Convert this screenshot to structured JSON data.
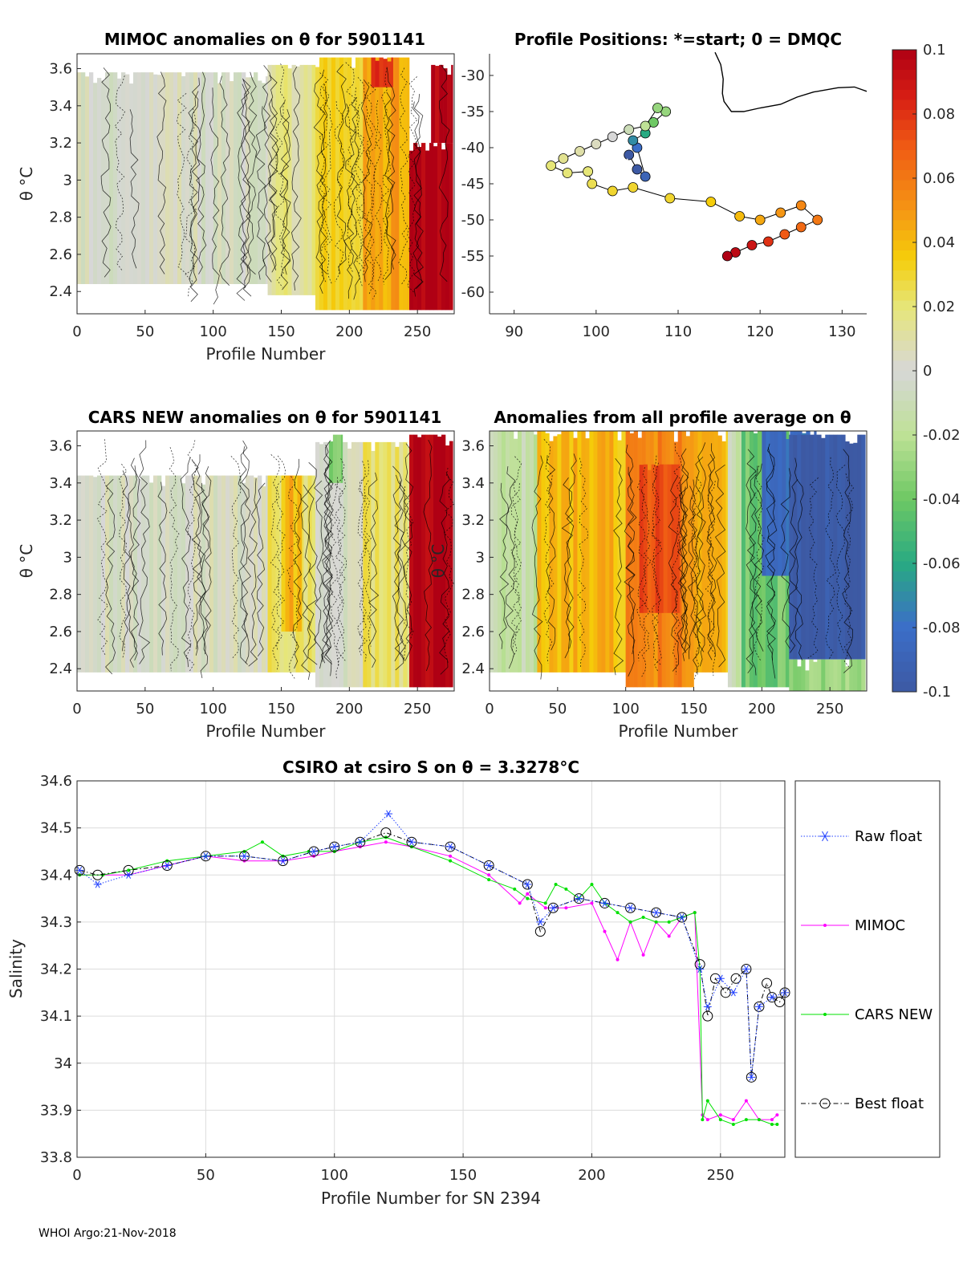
{
  "footer": "WHOI Argo:21-Nov-2018",
  "chart_data": [
    {
      "id": "mimoc",
      "type": "heatmap",
      "title": "MIMOC anomalies on θ  for 5901141",
      "xlabel": "Profile Number",
      "ylabel": "θ °C",
      "xlim": [
        0,
        277
      ],
      "ylim": [
        2.28,
        3.68
      ],
      "xticks": [
        "0",
        "50",
        "100",
        "150",
        "200",
        "250"
      ],
      "yticks": [
        "2.4",
        "2.6",
        "2.8",
        "3",
        "3.2",
        "3.4",
        "3.6"
      ],
      "xtick_values": [
        0,
        50,
        100,
        150,
        200,
        250
      ],
      "ytick_values": [
        2.4,
        2.6,
        2.8,
        3,
        3.2,
        3.4,
        3.6
      ],
      "blocks": [
        {
          "x0": 0,
          "x1": 140,
          "y0": 2.44,
          "y1": 3.58,
          "v": 0.0
        },
        {
          "x0": 140,
          "x1": 175,
          "y0": 2.38,
          "y1": 3.62,
          "v": 0.015
        },
        {
          "x0": 175,
          "x1": 210,
          "y0": 2.3,
          "y1": 3.66,
          "v": 0.03
        },
        {
          "x0": 210,
          "x1": 244,
          "y0": 2.3,
          "y1": 3.66,
          "v": 0.045
        },
        {
          "x0": 216,
          "x1": 232,
          "y0": 3.5,
          "y1": 3.66,
          "v": 0.08
        },
        {
          "x0": 244,
          "x1": 276,
          "y0": 2.3,
          "y1": 3.2,
          "v": 0.1
        },
        {
          "x0": 260,
          "x1": 276,
          "y0": 3.2,
          "y1": 3.62,
          "v": 0.1
        }
      ]
    },
    {
      "id": "positions",
      "type": "scatter",
      "title": "Profile Positions: *=start; 0 = DMQC",
      "xlim": [
        87,
        133
      ],
      "ylim": [
        -63,
        -27
      ],
      "xticks": [
        "90",
        "100",
        "110",
        "120",
        "130"
      ],
      "yticks": [
        "-30",
        "-35",
        "-40",
        "-45",
        "-50",
        "-55",
        "-60"
      ],
      "xtick_values": [
        90,
        100,
        110,
        120,
        130
      ],
      "ytick_values": [
        -30,
        -35,
        -40,
        -45,
        -50,
        -55,
        -60
      ],
      "start": {
        "lon": 103.8,
        "lat": -42.3
      },
      "coast": [
        [
          114.5,
          -26.8
        ],
        [
          115.2,
          -28.5
        ],
        [
          115.5,
          -30.5
        ],
        [
          115.4,
          -32.5
        ],
        [
          115.6,
          -33.6
        ],
        [
          116.5,
          -35.0
        ],
        [
          118.0,
          -35.0
        ],
        [
          120.0,
          -34.5
        ],
        [
          122.5,
          -34.0
        ],
        [
          124.5,
          -33.0
        ],
        [
          126.5,
          -32.3
        ],
        [
          129.5,
          -31.7
        ],
        [
          131.5,
          -31.6
        ],
        [
          132.5,
          -32.0
        ],
        [
          133,
          -32.2
        ]
      ],
      "track": [
        {
          "lon": 104.0,
          "lat": -41.0,
          "c": -0.1
        },
        {
          "lon": 105.0,
          "lat": -43.0,
          "c": -0.1
        },
        {
          "lon": 106.0,
          "lat": -44.0,
          "c": -0.09
        },
        {
          "lon": 105.0,
          "lat": -40.0,
          "c": -0.08
        },
        {
          "lon": 104.5,
          "lat": -39.0,
          "c": -0.07
        },
        {
          "lon": 106.0,
          "lat": -38.0,
          "c": -0.06
        },
        {
          "lon": 107.0,
          "lat": -36.5,
          "c": -0.04
        },
        {
          "lon": 108.5,
          "lat": -35.0,
          "c": -0.03
        },
        {
          "lon": 107.5,
          "lat": -34.5,
          "c": -0.03
        },
        {
          "lon": 106.0,
          "lat": -37.0,
          "c": -0.02
        },
        {
          "lon": 104.0,
          "lat": -37.5,
          "c": -0.01
        },
        {
          "lon": 102.0,
          "lat": -38.5,
          "c": 0.0
        },
        {
          "lon": 100.0,
          "lat": -39.5,
          "c": 0.005
        },
        {
          "lon": 98.0,
          "lat": -40.5,
          "c": 0.01
        },
        {
          "lon": 96.0,
          "lat": -41.5,
          "c": 0.015
        },
        {
          "lon": 94.5,
          "lat": -42.5,
          "c": 0.02
        },
        {
          "lon": 96.5,
          "lat": -43.5,
          "c": 0.02
        },
        {
          "lon": 99.0,
          "lat": -43.3,
          "c": 0.02
        },
        {
          "lon": 99.5,
          "lat": -45.0,
          "c": 0.025
        },
        {
          "lon": 102.0,
          "lat": -46.0,
          "c": 0.03
        },
        {
          "lon": 104.5,
          "lat": -45.5,
          "c": 0.03
        },
        {
          "lon": 109.0,
          "lat": -47.0,
          "c": 0.03
        },
        {
          "lon": 114.0,
          "lat": -47.5,
          "c": 0.035
        },
        {
          "lon": 117.5,
          "lat": -49.5,
          "c": 0.04
        },
        {
          "lon": 120.0,
          "lat": -50.0,
          "c": 0.045
        },
        {
          "lon": 122.5,
          "lat": -49.0,
          "c": 0.05
        },
        {
          "lon": 125.0,
          "lat": -48.0,
          "c": 0.055
        },
        {
          "lon": 127.0,
          "lat": -50.0,
          "c": 0.06
        },
        {
          "lon": 125.0,
          "lat": -51.0,
          "c": 0.065
        },
        {
          "lon": 123.0,
          "lat": -52.0,
          "c": 0.07
        },
        {
          "lon": 121.0,
          "lat": -53.0,
          "c": 0.08
        },
        {
          "lon": 119.0,
          "lat": -53.5,
          "c": 0.09
        },
        {
          "lon": 117.0,
          "lat": -54.5,
          "c": 0.095
        },
        {
          "lon": 116.0,
          "lat": -55.0,
          "c": 0.1
        }
      ]
    },
    {
      "id": "colorbar",
      "type": "colorbar",
      "ticks": [
        "0.1",
        "0.08",
        "0.06",
        "0.04",
        "0.02",
        "0",
        "-0.02",
        "-0.04",
        "-0.06",
        "-0.08",
        "-0.1"
      ],
      "tick_values": [
        0.1,
        0.08,
        0.06,
        0.04,
        0.02,
        0,
        -0.02,
        -0.04,
        -0.06,
        -0.08,
        -0.1
      ],
      "clim": [
        -0.1,
        0.1
      ]
    },
    {
      "id": "cars",
      "type": "heatmap",
      "title": "CARS NEW anomalies on θ for 5901141",
      "xlabel": "Profile Number",
      "ylabel": "θ °C",
      "xlim": [
        0,
        277
      ],
      "ylim": [
        2.28,
        3.68
      ],
      "xticks": [
        "0",
        "50",
        "100",
        "150",
        "200",
        "250"
      ],
      "yticks": [
        "2.4",
        "2.6",
        "2.8",
        "3",
        "3.2",
        "3.4",
        "3.6"
      ],
      "xtick_values": [
        0,
        50,
        100,
        150,
        200,
        250
      ],
      "ytick_values": [
        2.4,
        2.6,
        2.8,
        3,
        3.2,
        3.4,
        3.6
      ],
      "blocks": [
        {
          "x0": 0,
          "x1": 140,
          "y0": 2.38,
          "y1": 3.44,
          "v": 0.0
        },
        {
          "x0": 140,
          "x1": 175,
          "y0": 2.38,
          "y1": 3.44,
          "v": 0.02
        },
        {
          "x0": 150,
          "x1": 165,
          "y0": 2.6,
          "y1": 3.44,
          "v": 0.04
        },
        {
          "x0": 175,
          "x1": 210,
          "y0": 2.3,
          "y1": 3.62,
          "v": 0.0
        },
        {
          "x0": 185,
          "x1": 195,
          "y0": 3.4,
          "y1": 3.66,
          "v": -0.04
        },
        {
          "x0": 210,
          "x1": 244,
          "y0": 2.3,
          "y1": 3.62,
          "v": 0.02
        },
        {
          "x0": 244,
          "x1": 276,
          "y0": 2.3,
          "y1": 3.66,
          "v": 0.1
        }
      ]
    },
    {
      "id": "allavg",
      "type": "heatmap",
      "title": "Anomalies from all profile average on θ",
      "xlabel": "Profile Number",
      "ylabel": "θ °C",
      "xlim": [
        0,
        277
      ],
      "ylim": [
        2.28,
        3.68
      ],
      "xticks": [
        "0",
        "50",
        "100",
        "150",
        "200",
        "250"
      ],
      "yticks": [
        "2.4",
        "2.6",
        "2.8",
        "3",
        "3.2",
        "3.4",
        "3.6"
      ],
      "xtick_values": [
        0,
        50,
        100,
        150,
        200,
        250
      ],
      "ytick_values": [
        2.4,
        2.6,
        2.8,
        3,
        3.2,
        3.4,
        3.6
      ],
      "blocks": [
        {
          "x0": 0,
          "x1": 35,
          "y0": 2.38,
          "y1": 3.68,
          "v": -0.015
        },
        {
          "x0": 35,
          "x1": 100,
          "y0": 2.38,
          "y1": 3.68,
          "v": 0.04
        },
        {
          "x0": 100,
          "x1": 150,
          "y0": 2.3,
          "y1": 3.68,
          "v": 0.055
        },
        {
          "x0": 110,
          "x1": 140,
          "y0": 2.7,
          "y1": 3.5,
          "v": 0.075
        },
        {
          "x0": 150,
          "x1": 175,
          "y0": 2.38,
          "y1": 3.68,
          "v": 0.04
        },
        {
          "x0": 175,
          "x1": 185,
          "y0": 2.3,
          "y1": 3.68,
          "v": -0.01
        },
        {
          "x0": 185,
          "x1": 220,
          "y0": 2.3,
          "y1": 3.68,
          "v": -0.04
        },
        {
          "x0": 200,
          "x1": 240,
          "y0": 2.9,
          "y1": 3.68,
          "v": -0.08
        },
        {
          "x0": 220,
          "x1": 276,
          "y0": 2.45,
          "y1": 3.66,
          "v": -0.1
        },
        {
          "x0": 220,
          "x1": 276,
          "y0": 2.28,
          "y1": 2.45,
          "v": -0.03
        }
      ]
    },
    {
      "id": "salinity",
      "type": "line",
      "title": "CSIRO at csiro S on θ = 3.3278°C",
      "xlabel": "Profile Number for SN 2394",
      "ylabel": "Salinity",
      "xlim": [
        0,
        275
      ],
      "ylim": [
        33.8,
        34.6
      ],
      "xticks": [
        "0",
        "50",
        "100",
        "150",
        "200",
        "250"
      ],
      "yticks": [
        "33.8",
        "33.9",
        "34",
        "34.1",
        "34.2",
        "34.3",
        "34.4",
        "34.5",
        "34.6"
      ],
      "xtick_values": [
        0,
        50,
        100,
        150,
        200,
        250
      ],
      "ytick_values": [
        33.8,
        33.9,
        34.0,
        34.1,
        34.2,
        34.3,
        34.4,
        34.5,
        34.6
      ],
      "legend": [
        "Raw float",
        "MIMOC",
        "CARS NEW",
        "Best float"
      ],
      "series": [
        {
          "name": "Raw float",
          "color": "#1f3fff",
          "x": [
            1,
            8,
            20,
            35,
            50,
            65,
            80,
            92,
            100,
            110,
            121,
            130,
            145,
            160,
            175,
            180,
            185,
            195,
            205,
            215,
            225,
            235,
            242,
            245,
            250,
            255,
            260,
            262,
            265,
            270,
            275
          ],
          "y": [
            34.41,
            34.38,
            34.4,
            34.42,
            34.44,
            34.44,
            34.43,
            34.45,
            34.46,
            34.47,
            34.53,
            34.47,
            34.46,
            34.42,
            34.38,
            34.3,
            34.33,
            34.35,
            34.34,
            34.33,
            34.32,
            34.31,
            34.2,
            34.12,
            34.18,
            34.15,
            34.2,
            33.97,
            34.12,
            34.14,
            34.15
          ]
        },
        {
          "name": "MIMOC",
          "color": "#ff00ff",
          "x": [
            1,
            10,
            20,
            35,
            50,
            65,
            80,
            92,
            100,
            110,
            120,
            130,
            145,
            160,
            172,
            175,
            182,
            190,
            200,
            205,
            210,
            215,
            220,
            225,
            230,
            235,
            240,
            243,
            245,
            250,
            255,
            260,
            265,
            270,
            272
          ],
          "y": [
            34.4,
            34.4,
            34.4,
            34.42,
            34.44,
            34.43,
            34.43,
            34.44,
            34.45,
            34.46,
            34.47,
            34.46,
            34.44,
            34.4,
            34.34,
            34.36,
            34.33,
            34.33,
            34.34,
            34.28,
            34.22,
            34.3,
            34.23,
            34.3,
            34.27,
            34.31,
            34.32,
            33.89,
            33.88,
            33.89,
            33.88,
            33.92,
            33.88,
            33.88,
            33.89
          ]
        },
        {
          "name": "CARS NEW",
          "color": "#00e000",
          "x": [
            1,
            10,
            20,
            35,
            50,
            65,
            72,
            80,
            90,
            100,
            110,
            120,
            130,
            145,
            160,
            170,
            175,
            182,
            186,
            190,
            195,
            200,
            205,
            210,
            215,
            220,
            225,
            230,
            235,
            240,
            242,
            243,
            245,
            250,
            255,
            260,
            265,
            270,
            272
          ],
          "y": [
            34.4,
            34.4,
            34.41,
            34.43,
            34.44,
            34.45,
            34.47,
            34.44,
            34.45,
            34.45,
            34.47,
            34.48,
            34.46,
            34.43,
            34.39,
            34.37,
            34.35,
            34.34,
            34.38,
            34.37,
            34.35,
            34.38,
            34.34,
            34.32,
            34.3,
            34.31,
            34.3,
            34.3,
            34.31,
            34.32,
            34.2,
            33.88,
            33.92,
            33.88,
            33.87,
            33.88,
            33.88,
            33.87,
            33.87
          ]
        },
        {
          "name": "Best float",
          "color": "#000000",
          "x": [
            1,
            8,
            20,
            35,
            50,
            65,
            80,
            92,
            100,
            110,
            120,
            130,
            145,
            160,
            175,
            180,
            185,
            195,
            205,
            215,
            225,
            235,
            242,
            245,
            248,
            252,
            256,
            260,
            262,
            265,
            268,
            270,
            273,
            275
          ],
          "y": [
            34.41,
            34.4,
            34.41,
            34.42,
            34.44,
            34.44,
            34.43,
            34.45,
            34.46,
            34.47,
            34.49,
            34.47,
            34.46,
            34.42,
            34.38,
            34.28,
            34.33,
            34.35,
            34.34,
            34.33,
            34.32,
            34.31,
            34.21,
            34.1,
            34.18,
            34.15,
            34.18,
            34.2,
            33.97,
            34.12,
            34.17,
            34.14,
            34.13,
            34.15
          ]
        }
      ]
    }
  ]
}
